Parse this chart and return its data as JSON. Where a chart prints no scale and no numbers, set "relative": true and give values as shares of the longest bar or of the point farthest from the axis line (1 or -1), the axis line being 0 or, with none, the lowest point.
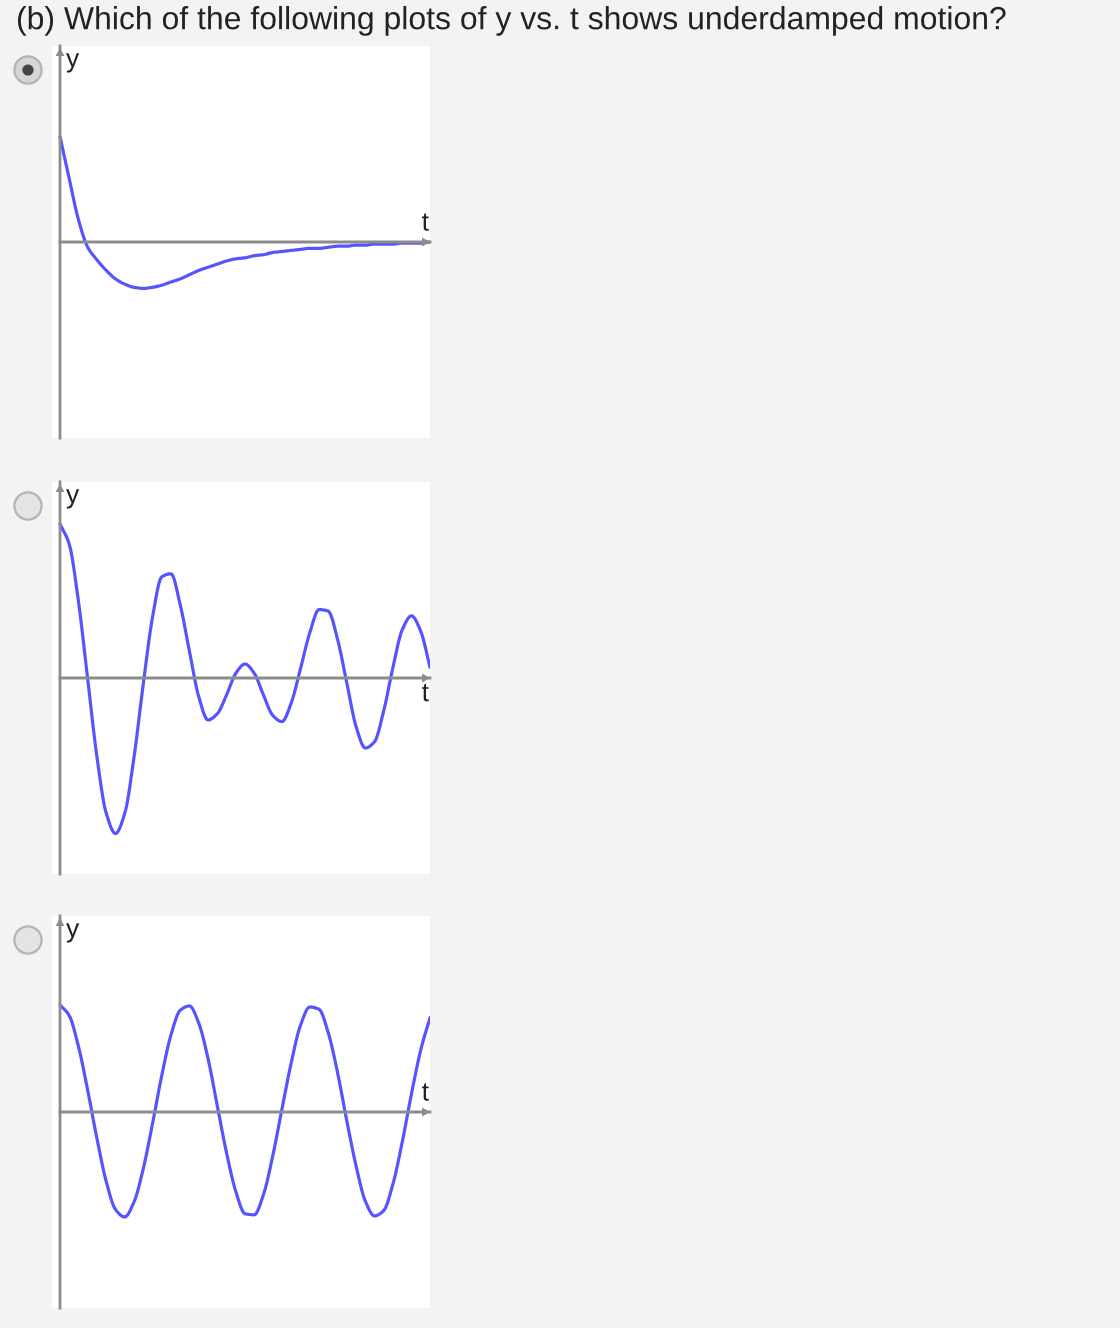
{
  "chart_data": [
    {
      "type": "line",
      "title": "(b) Which of the following plots of y vs. t shows underdamped motion?",
      "xlabel": "t",
      "ylabel": "y",
      "relative": true,
      "categories": [
        null,
        null,
        null,
        null,
        null,
        null,
        null,
        null,
        null,
        null,
        null,
        null,
        null,
        null,
        null,
        null,
        null,
        null,
        null,
        null,
        null,
        null,
        null,
        null,
        null,
        null,
        null,
        null,
        null,
        null,
        null,
        null,
        null,
        null,
        null,
        null,
        null,
        null,
        null,
        null,
        null
      ],
      "series": [
        {
          "color": "#5555ff",
          "values": [
            1.0,
            0.6,
            0.21,
            -0.05,
            -0.17,
            -0.27,
            -0.35,
            -0.4,
            -0.43,
            -0.44,
            -0.43,
            -0.41,
            -0.38,
            -0.35,
            -0.31,
            -0.27,
            -0.24,
            -0.21,
            -0.18,
            -0.16,
            -0.15,
            -0.13,
            -0.12,
            -0.1,
            -0.09,
            -0.08,
            -0.07,
            -0.06,
            -0.06,
            -0.05,
            -0.04,
            -0.04,
            -0.03,
            -0.03,
            -0.02,
            -0.02,
            -0.02,
            -0.01,
            -0.01,
            -0.01,
            0.0
          ]
        }
      ]
    },
    {
      "type": "line",
      "xlabel": "t",
      "ylabel": "y",
      "relative": true,
      "categories": [
        null,
        null,
        null,
        null,
        null,
        null,
        null,
        null,
        null,
        null,
        null,
        null,
        null,
        null,
        null,
        null,
        null,
        null,
        null,
        null,
        null,
        null,
        null,
        null,
        null,
        null,
        null,
        null,
        null,
        null,
        null,
        null,
        null,
        null,
        null,
        null,
        null,
        null,
        null,
        null,
        null
      ],
      "series": [
        {
          "color": "#5555ff",
          "values": [
            0.99,
            0.86,
            0.49,
            -0.01,
            -0.51,
            -0.87,
            -1.0,
            -0.87,
            -0.51,
            -0.04,
            0.39,
            0.65,
            0.67,
            0.47,
            0.17,
            -0.12,
            -0.27,
            -0.23,
            -0.11,
            0.03,
            0.09,
            0.03,
            -0.11,
            -0.24,
            -0.28,
            -0.16,
            0.06,
            0.29,
            0.44,
            0.43,
            0.25,
            -0.03,
            -0.31,
            -0.45,
            -0.41,
            -0.21,
            0.07,
            0.31,
            0.4,
            0.3,
            0.07
          ]
        }
      ]
    },
    {
      "type": "line",
      "xlabel": "t",
      "ylabel": "y",
      "relative": true,
      "categories": [
        null,
        null,
        null,
        null,
        null,
        null,
        null,
        null,
        null,
        null,
        null,
        null,
        null,
        null,
        null,
        null,
        null,
        null,
        null,
        null,
        null,
        null,
        null,
        null,
        null,
        null,
        null,
        null,
        null,
        null,
        null,
        null,
        null,
        null,
        null,
        null,
        null,
        null,
        null,
        null,
        null
      ],
      "series": [
        {
          "color": "#5555ff",
          "values": [
            1.0,
            0.9,
            0.61,
            0.2,
            -0.25,
            -0.65,
            -0.91,
            -0.98,
            -0.84,
            -0.53,
            -0.11,
            0.34,
            0.72,
            0.95,
            0.99,
            0.83,
            0.5,
            0.06,
            -0.38,
            -0.74,
            -0.95,
            -0.96,
            -0.77,
            -0.41,
            0.03,
            0.46,
            0.81,
            0.98,
            0.96,
            0.74,
            0.37,
            -0.08,
            -0.5,
            -0.83,
            -0.97,
            -0.92,
            -0.67,
            -0.28,
            0.17,
            0.58,
            0.88
          ]
        }
      ]
    }
  ]
}
